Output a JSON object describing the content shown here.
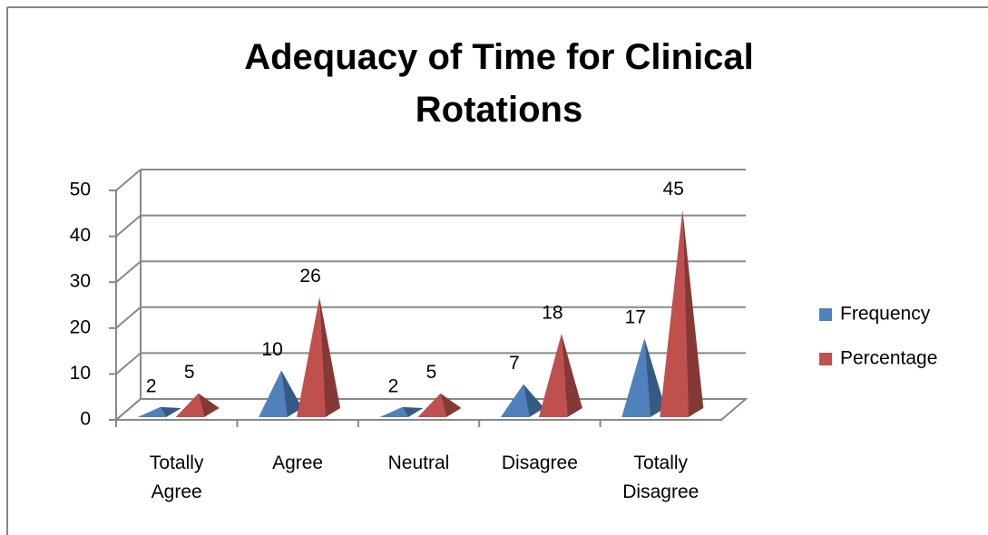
{
  "chart_data": {
    "type": "pyramid3d",
    "title": "Adequacy of Time for Clinical Rotations",
    "categories": [
      "Totally Agree",
      "Agree",
      "Neutral",
      "Disagree",
      "Totally Disagree"
    ],
    "series": [
      {
        "name": "Frequency",
        "color": "#4f81bd",
        "values": [
          2,
          10,
          2,
          7,
          17
        ]
      },
      {
        "name": "Percentage",
        "color": "#c0504d",
        "values": [
          5,
          26,
          5,
          18,
          45
        ]
      }
    ],
    "ylim": [
      0,
      50
    ],
    "yticks": [
      0,
      10,
      20,
      30,
      40,
      50
    ],
    "grid": true,
    "legend": "right"
  }
}
